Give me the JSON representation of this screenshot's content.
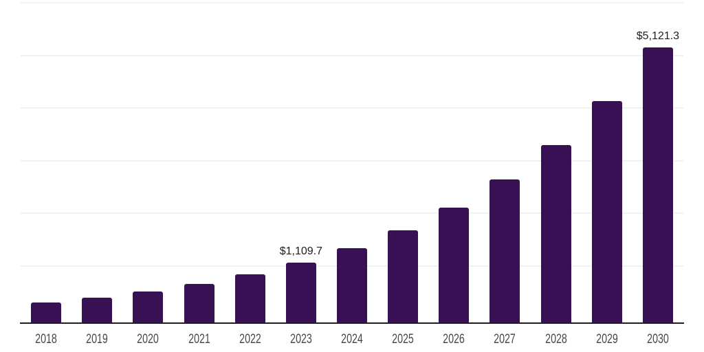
{
  "chart_data": {
    "type": "bar",
    "title": "",
    "xlabel": "",
    "ylabel": "",
    "categories": [
      "2018",
      "2019",
      "2020",
      "2021",
      "2022",
      "2023",
      "2024",
      "2025",
      "2026",
      "2027",
      "2028",
      "2029",
      "2030"
    ],
    "values": [
      372.2,
      463.1,
      576.2,
      716.9,
      891.9,
      1109.7,
      1380.7,
      1717.8,
      2137.3,
      2659.2,
      3308.6,
      4116.5,
      5121.3
    ],
    "data_labels": [
      "",
      "",
      "",
      "",
      "",
      "$1,109.7",
      "",
      "",
      "",
      "",
      "",
      "",
      "$5,121.3"
    ],
    "ylim": [
      0,
      6000
    ],
    "gridline_values": [
      1000,
      2000,
      3000,
      4000,
      5000,
      6000
    ],
    "grid_on": true,
    "legend": "none",
    "colors": {
      "bar": "#371153",
      "gridline": "#f2f2f2",
      "axis": "#1f1f1f",
      "value_label": "#1c1c1c",
      "tick_label": "#474747",
      "background": "#ffffff"
    }
  }
}
